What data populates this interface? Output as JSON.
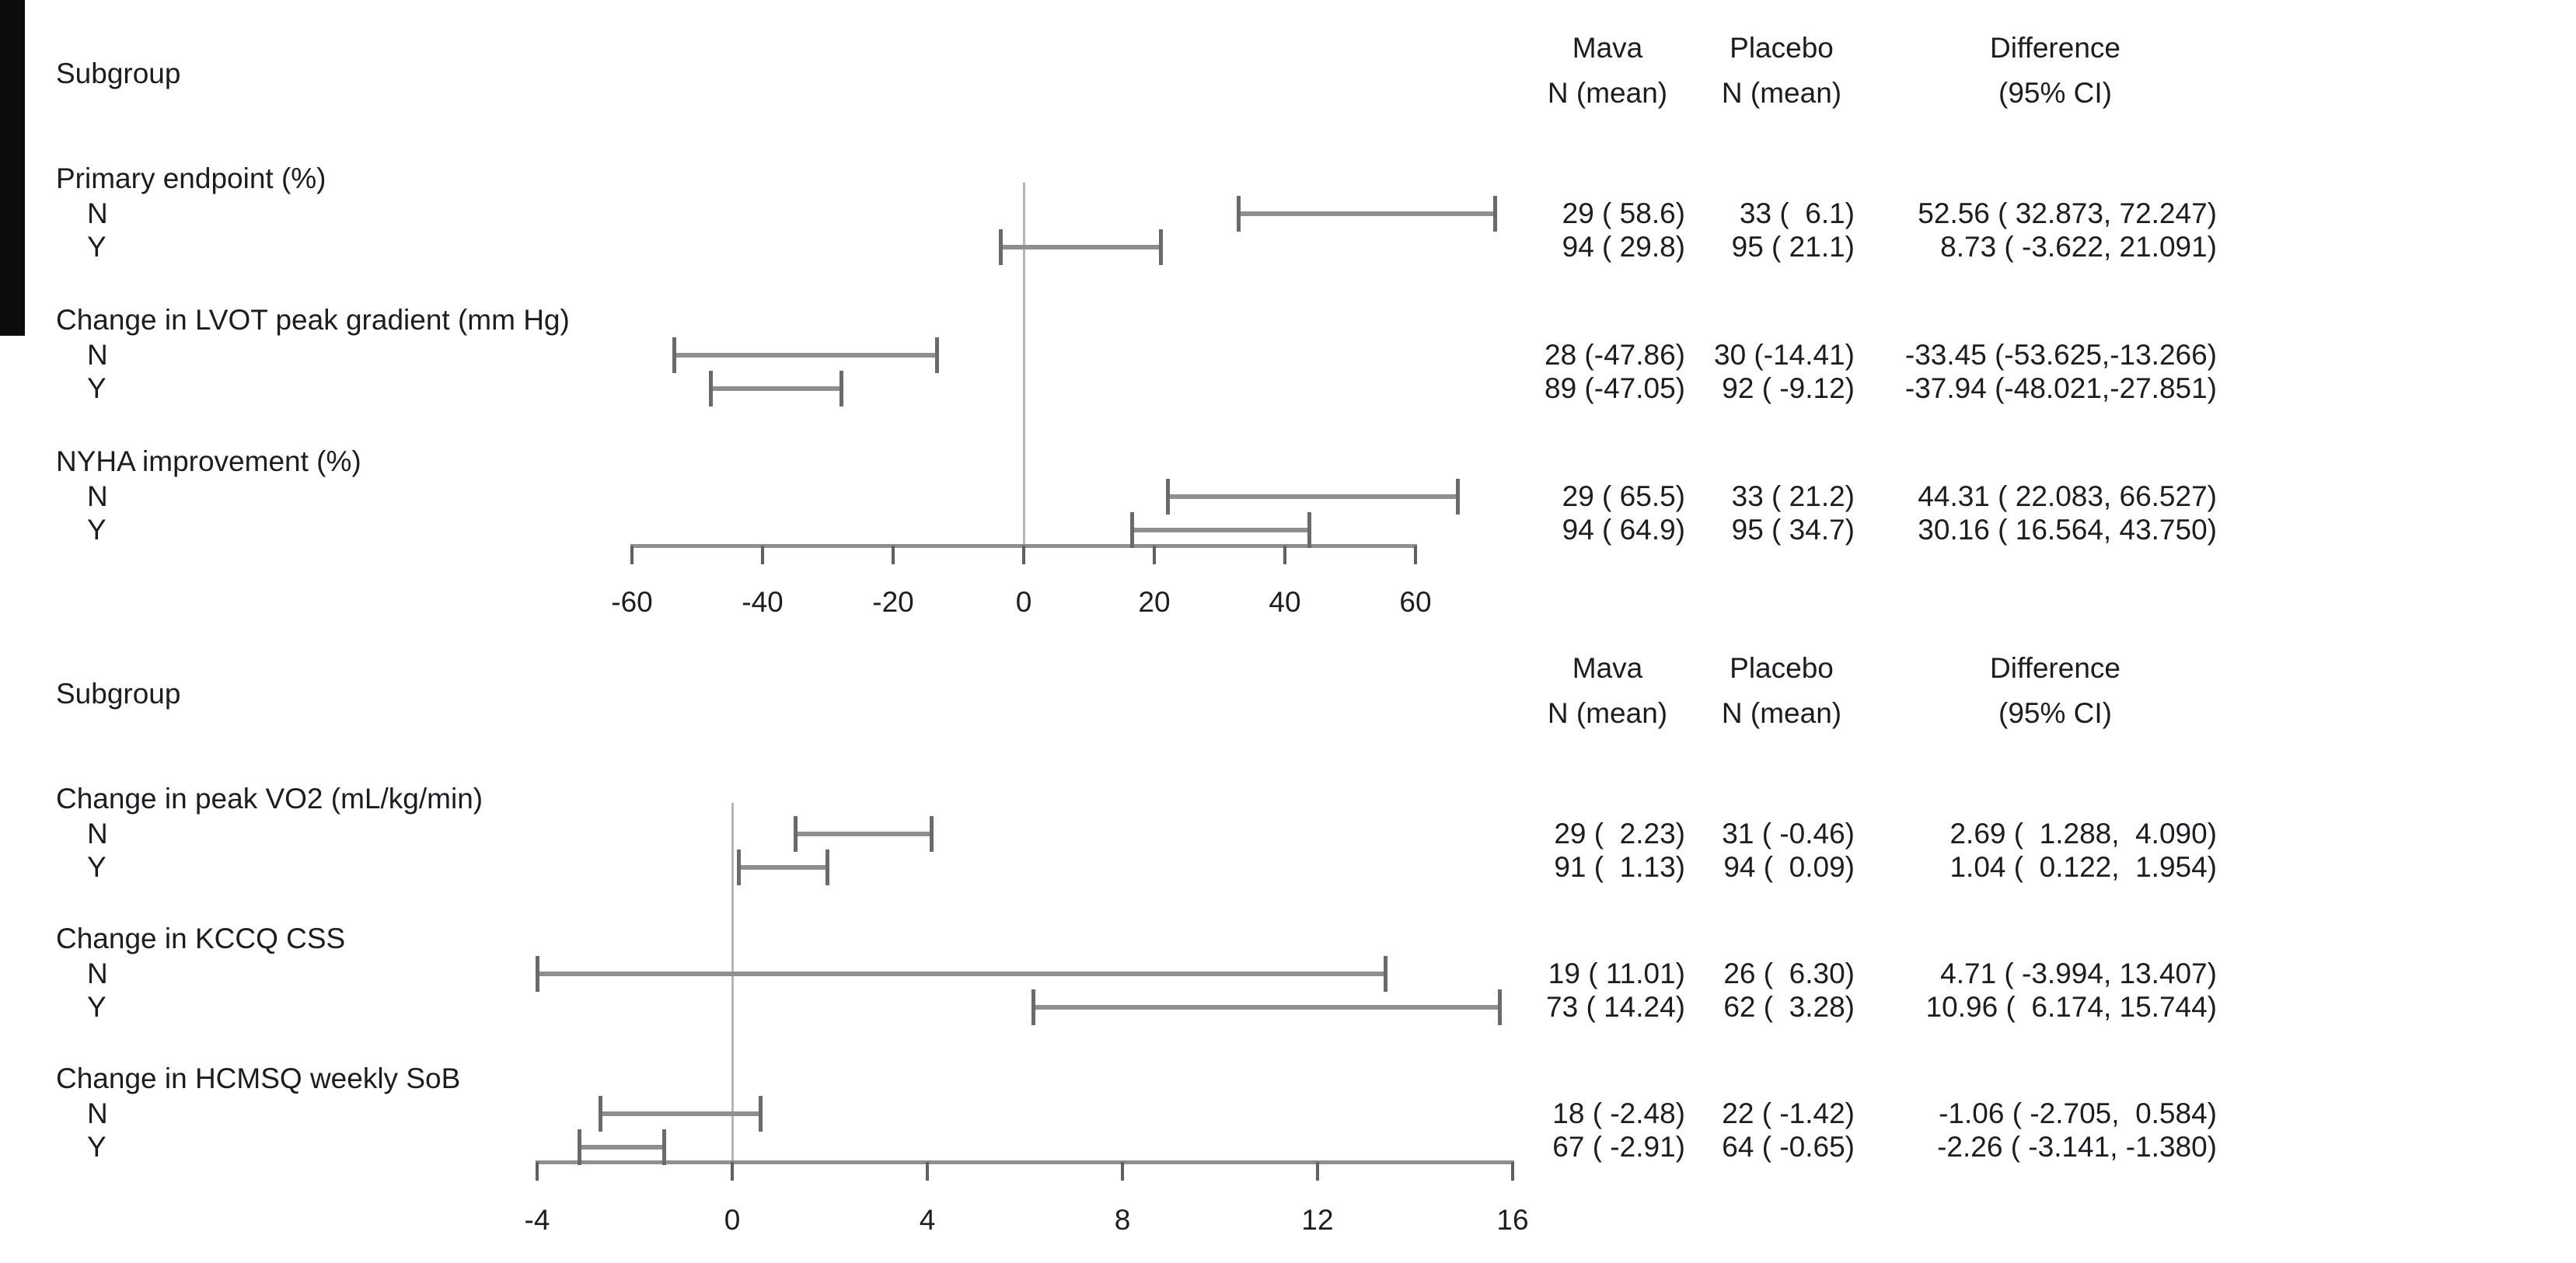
{
  "background": "#ffffff",
  "colors": {
    "text": "#1b1d22",
    "ci_line": "#8f8f8f",
    "ci_cap": "#6a6a6a",
    "marker": "#0d0d0d",
    "axis_line": "#8f8f8f",
    "axis_tick": "#606060",
    "zero_line": "#b5b5b5"
  },
  "chart_data": [
    {
      "type": "scatter",
      "variant": "forest-plot-with-error-bars",
      "panel": 1,
      "subgroup_header": "Subgroup",
      "columns": [
        {
          "title": "Mava",
          "subtitle": "N (mean)"
        },
        {
          "title": "Placebo",
          "subtitle": "N (mean)"
        },
        {
          "title": "Difference",
          "subtitle": "(95% CI)"
        }
      ],
      "xaxis": {
        "min": -60,
        "max": 60,
        "ticks": [
          -60,
          -40,
          -20,
          0,
          20,
          40,
          60
        ],
        "reference_line": 0,
        "grid": false
      },
      "sections": [
        {
          "label": "Primary endpoint (%)",
          "rows": [
            {
              "level": "N",
              "estimate": 52.56,
              "ci_low": 32.873,
              "ci_high": 72.247,
              "mava": "29 ( 58.6)",
              "placebo": "33 (  6.1)",
              "difference": "52.56 ( 32.873, 72.247)"
            },
            {
              "level": "Y",
              "estimate": 8.73,
              "ci_low": -3.622,
              "ci_high": 21.091,
              "mava": "94 ( 29.8)",
              "placebo": "95 ( 21.1)",
              "difference": "8.73 ( -3.622, 21.091)"
            }
          ]
        },
        {
          "label": "Change in LVOT peak gradient (mm Hg)",
          "rows": [
            {
              "level": "N",
              "estimate": -33.45,
              "ci_low": -53.625,
              "ci_high": -13.266,
              "mava": "28 (-47.86)",
              "placebo": "30 (-14.41)",
              "difference": "-33.45 (-53.625,-13.266)"
            },
            {
              "level": "Y",
              "estimate": -37.94,
              "ci_low": -48.021,
              "ci_high": -27.851,
              "mava": "89 (-47.05)",
              "placebo": "92 ( -9.12)",
              "difference": "-37.94 (-48.021,-27.851)"
            }
          ]
        },
        {
          "label": "NYHA improvement (%)",
          "rows": [
            {
              "level": "N",
              "estimate": 44.31,
              "ci_low": 22.083,
              "ci_high": 66.527,
              "mava": "29 ( 65.5)",
              "placebo": "33 ( 21.2)",
              "difference": "44.31 ( 22.083, 66.527)"
            },
            {
              "level": "Y",
              "estimate": 30.16,
              "ci_low": 16.564,
              "ci_high": 43.75,
              "mava": "94 ( 64.9)",
              "placebo": "95 ( 34.7)",
              "difference": "30.16 ( 16.564, 43.750)"
            }
          ]
        }
      ]
    },
    {
      "type": "scatter",
      "variant": "forest-plot-with-error-bars",
      "panel": 2,
      "subgroup_header": "Subgroup",
      "columns": [
        {
          "title": "Mava",
          "subtitle": "N (mean)"
        },
        {
          "title": "Placebo",
          "subtitle": "N (mean)"
        },
        {
          "title": "Difference",
          "subtitle": "(95% CI)"
        }
      ],
      "xaxis": {
        "min": -4,
        "max": 16,
        "ticks": [
          -4,
          0,
          4,
          8,
          12,
          16
        ],
        "reference_line": 0,
        "grid": false
      },
      "sections": [
        {
          "label": "Change in peak VO2 (mL/kg/min)",
          "rows": [
            {
              "level": "N",
              "estimate": 2.69,
              "ci_low": 1.288,
              "ci_high": 4.09,
              "mava": "29 (  2.23)",
              "placebo": "31 ( -0.46)",
              "difference": "2.69 (  1.288,  4.090)"
            },
            {
              "level": "Y",
              "estimate": 1.04,
              "ci_low": 0.122,
              "ci_high": 1.954,
              "mava": "91 (  1.13)",
              "placebo": "94 (  0.09)",
              "difference": "1.04 (  0.122,  1.954)"
            }
          ]
        },
        {
          "label": "Change in KCCQ CSS",
          "rows": [
            {
              "level": "N",
              "estimate": 4.71,
              "ci_low": -3.994,
              "ci_high": 13.407,
              "mava": "19 ( 11.01)",
              "placebo": "26 (  6.30)",
              "difference": "4.71 ( -3.994, 13.407)"
            },
            {
              "level": "Y",
              "estimate": 10.96,
              "ci_low": 6.174,
              "ci_high": 15.744,
              "mava": "73 ( 14.24)",
              "placebo": "62 (  3.28)",
              "difference": "10.96 (  6.174, 15.744)"
            }
          ]
        },
        {
          "label": "Change in HCMSQ weekly SoB",
          "rows": [
            {
              "level": "N",
              "estimate": -1.06,
              "ci_low": -2.705,
              "ci_high": 0.584,
              "mava": "18 ( -2.48)",
              "placebo": "22 ( -1.42)",
              "difference": "-1.06 ( -2.705,  0.584)"
            },
            {
              "level": "Y",
              "estimate": -2.26,
              "ci_low": -3.141,
              "ci_high": -1.38,
              "mava": "67 ( -2.91)",
              "placebo": "64 ( -0.65)",
              "difference": "-2.26 ( -3.141, -1.380)"
            }
          ]
        }
      ]
    }
  ]
}
